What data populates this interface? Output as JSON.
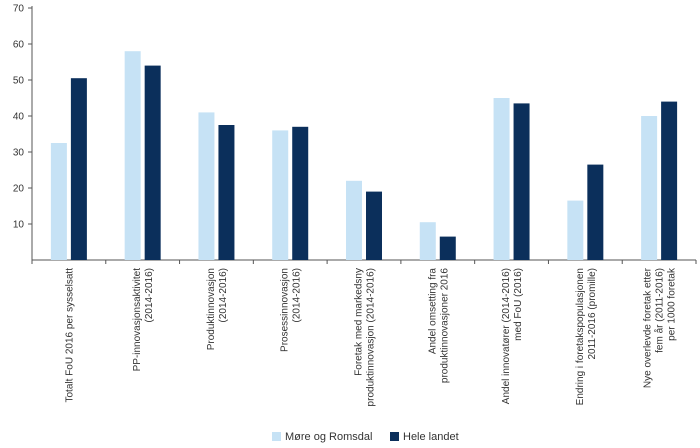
{
  "chart_data": {
    "type": "bar",
    "title": "",
    "xlabel": "",
    "ylabel": "",
    "ylim": [
      0,
      70
    ],
    "yticks": [
      10,
      20,
      30,
      40,
      50,
      60,
      70
    ],
    "grid": false,
    "legend_position": "bottom",
    "categories": [
      [
        "Totalt FoU 2016 per sysselsatt"
      ],
      [
        "PP-innovasjonsaktivitet",
        "(2014-2016)"
      ],
      [
        "Produktinnovasjon",
        "(2014-2016)"
      ],
      [
        "Prosessinnovasjon",
        "(2014-2016)"
      ],
      [
        "Foretak med markedsny",
        "produktinnovasjon (2014-2016)"
      ],
      [
        "Andel omsetting fra",
        "produktinnovasjoner 2016"
      ],
      [
        "Andel innovatører (2014-2016)",
        "med FoU (2016)"
      ],
      [
        "Endring i foretakspopulasjonen",
        "2011-2016 (promille)"
      ],
      [
        "Nye overlevde foretak etter",
        "fem år (2011-2016)",
        "per 1000 foretak"
      ]
    ],
    "series": [
      {
        "name": "Møre og Romsdal",
        "color": "#c6e2f5",
        "values": [
          32.5,
          58,
          41,
          36,
          22,
          10.5,
          45,
          16.5,
          40
        ]
      },
      {
        "name": "Hele landet",
        "color": "#0b2f5b",
        "values": [
          50.5,
          54,
          37.5,
          37,
          19,
          6.5,
          43.5,
          26.5,
          44
        ]
      }
    ]
  }
}
